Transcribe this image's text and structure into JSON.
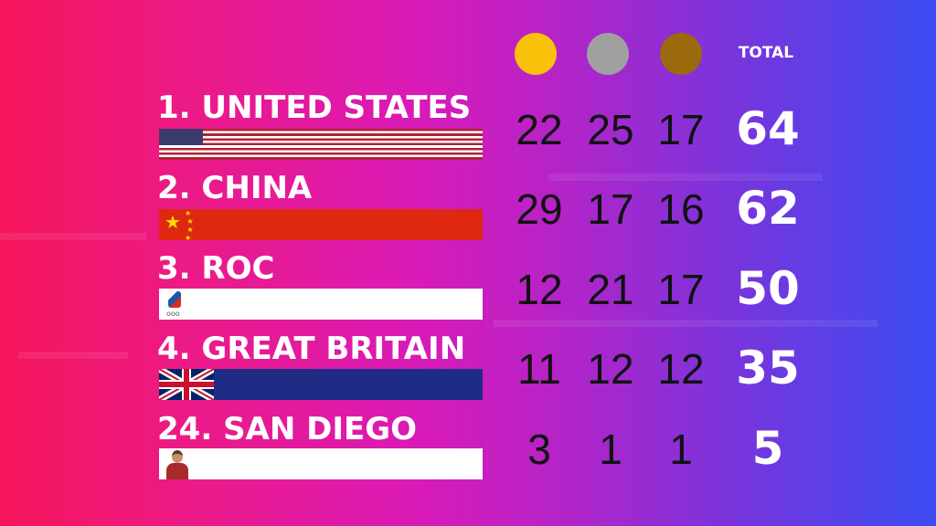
{
  "header": {
    "gold_icon": "gold-medal-circle",
    "silver_icon": "silver-medal-circle",
    "bronze_icon": "bronze-medal-circle",
    "total_label": "TOTAL"
  },
  "colors": {
    "gold": "#f9c20a",
    "silver": "#a0a0a0",
    "bronze": "#9a6a0c"
  },
  "rows": [
    {
      "name": "1. UNITED STATES",
      "flag": "usa-flag",
      "gold": "22",
      "silver": "25",
      "bronze": "17",
      "total": "64"
    },
    {
      "name": "2. CHINA",
      "flag": "china-flag",
      "gold": "29",
      "silver": "17",
      "bronze": "16",
      "total": "62"
    },
    {
      "name": "3. ROC",
      "flag": "roc-flag",
      "gold": "12",
      "silver": "21",
      "bronze": "17",
      "total": "50"
    },
    {
      "name": "4. GREAT BRITAIN",
      "flag": "uk-flag",
      "gold": "11",
      "silver": "12",
      "bronze": "12",
      "total": "35"
    },
    {
      "name": "24. SAN DIEGO",
      "flag": "san-diego-portrait",
      "gold": "3",
      "silver": "1",
      "bronze": "1",
      "total": "5"
    }
  ]
}
